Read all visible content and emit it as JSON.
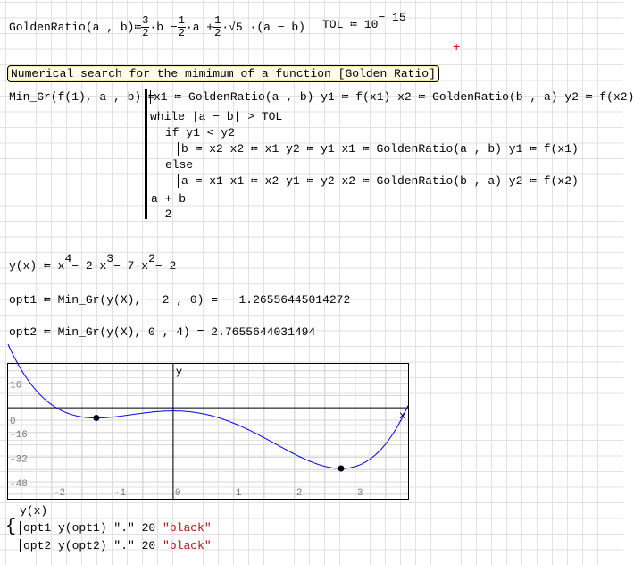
{
  "definitions": {
    "golden_ratio": {
      "lhs": "GoldenRatio(a , b)",
      "assign": "≔",
      "f1_num": "3",
      "f1_den": "2",
      "t1": "·b −",
      "f2_num": "1",
      "f2_den": "2",
      "t2": "·a +",
      "f3_num": "1",
      "f3_den": "2",
      "t3": "·√5 ·(a − b)"
    },
    "tol": {
      "lhs": "TOL ≔ 10",
      "exp": "− 15"
    }
  },
  "text_region": "Numerical search for the mimimum of a function [Golden Ratio]",
  "program": {
    "lhs": "Min_Gr(f(1), a , b) ≔",
    "lines": [
      "x1 ≔ GoldenRatio(a , b) y1 ≔ f(x1) x2 ≔ GoldenRatio(b , a) y2 ≔ f(x2)",
      "while |a − b| > TOL",
      "if y1 < y2",
      "b ≔ x2 x2 ≔ x1 y2 ≔ y1 x1 ≔ GoldenRatio(a , b) y1 ≔ f(x1)",
      "else",
      "a ≔ x1 x1 ≔ x2 y1 ≔ y2 x2 ≔ GoldenRatio(b , a) y2 ≔ f(x2)"
    ],
    "return_num": "a + b",
    "return_den": "2"
  },
  "function_def": {
    "base": "y(x) ≔ x",
    "e1": "4",
    "m1": "− 2·x",
    "e2": "3",
    "m2": "− 7·x",
    "e3": "2",
    "m3": "− 2"
  },
  "results": [
    {
      "expr": "opt1 ≔ Min_Gr(y(X), − 2 , 0) = − 1.26556445014272"
    },
    {
      "expr": "opt2 ≔ Min_Gr(y(X), 0 , 4) = 2.7655644031494"
    }
  ],
  "cursor_color": "#e00000",
  "chart_data": {
    "type": "line",
    "xlabel": "x",
    "ylabel": "y",
    "xlim": [
      -2.72,
      3.87
    ],
    "ylim": [
      -59,
      28.5
    ],
    "x_ticks": [
      "-2",
      "-1",
      "0",
      "1",
      "2",
      "3"
    ],
    "y_ticks": [
      "16",
      "0",
      "-16",
      "-32",
      "-48"
    ],
    "grid": true,
    "series": [
      {
        "name": "y(x)",
        "function": "x^4 - 2x^3 - 7x^2 - 2",
        "color": "#0000ff"
      },
      {
        "points": [
          [
            -1.26556445014272,
            -6.59
          ],
          [
            2.7655644031494,
            -39.3
          ]
        ],
        "marker": ".",
        "size": 20,
        "color": "black"
      }
    ]
  },
  "plot_legend": {
    "trace1": "y(x)",
    "trace2": {
      "a": "opt1 y(opt1) \".\" 20",
      "b": "\"black\""
    },
    "trace3": {
      "a": "opt2 y(opt2) \".\" 20",
      "b": "\"black\""
    }
  }
}
